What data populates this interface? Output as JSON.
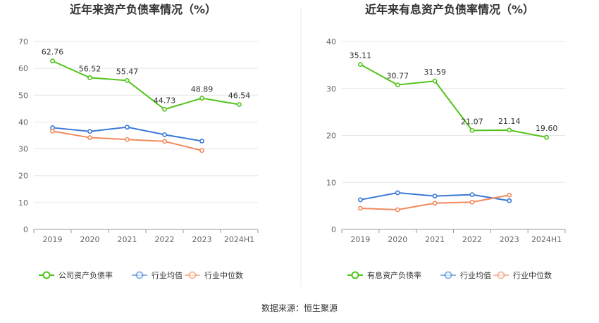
{
  "source_text": "数据来源：恒生聚源",
  "chart_data": [
    {
      "type": "line",
      "title": "近年来资产负债率情况（%）",
      "categories": [
        "2019",
        "2020",
        "2021",
        "2022",
        "2023",
        "2024H1"
      ],
      "ylim": [
        0,
        70
      ],
      "yticks": [
        0,
        10,
        20,
        30,
        40,
        50,
        60,
        70
      ],
      "grid": true,
      "legend_position": "bottom",
      "series": [
        {
          "name": "公司资产负债率",
          "color": "#52c41a",
          "values": [
            62.76,
            56.52,
            55.47,
            44.73,
            48.89,
            46.54
          ],
          "labels": [
            "62.76",
            "56.52",
            "55.47",
            "44.73",
            "48.89",
            "46.54"
          ]
        },
        {
          "name": "行业均值",
          "color": "#3b78d8",
          "values": [
            37.9,
            36.5,
            38.1,
            35.3,
            32.9,
            null
          ]
        },
        {
          "name": "行业中位数",
          "color": "#f28a5c",
          "values": [
            36.6,
            34.2,
            33.5,
            32.8,
            29.4,
            null
          ]
        }
      ]
    },
    {
      "type": "line",
      "title": "近年来有息资产负债率情况（%）",
      "categories": [
        "2019",
        "2020",
        "2021",
        "2022",
        "2023",
        "2024H1"
      ],
      "ylim": [
        0,
        40
      ],
      "yticks": [
        0,
        10,
        20,
        30,
        40
      ],
      "grid": true,
      "legend_position": "bottom",
      "series": [
        {
          "name": "有息资产负债率",
          "color": "#52c41a",
          "values": [
            35.11,
            30.77,
            31.59,
            21.07,
            21.14,
            19.6
          ],
          "labels": [
            "35.11",
            "30.77",
            "31.59",
            "21.07",
            "21.14",
            "19.60"
          ]
        },
        {
          "name": "行业均值",
          "color": "#3b78d8",
          "values": [
            6.3,
            7.8,
            7.1,
            7.4,
            6.1,
            null
          ]
        },
        {
          "name": "行业中位数",
          "color": "#f28a5c",
          "values": [
            4.5,
            4.2,
            5.6,
            5.8,
            7.3,
            null
          ]
        }
      ]
    }
  ]
}
